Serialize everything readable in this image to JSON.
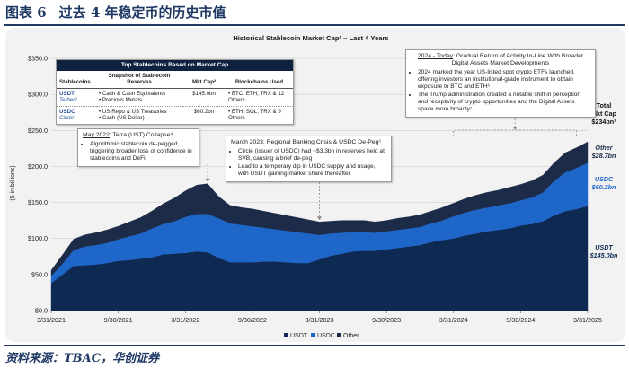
{
  "figure": {
    "number": "图表 6",
    "title": "过去 4 年稳定币的历史市值",
    "source": "资料来源：TBAC，华创证券"
  },
  "chart_data": {
    "type": "area",
    "stacked": true,
    "title": "Historical Stablecoin Market Cap¹ – Last 4 Years",
    "ylabel": "($ in billions)",
    "ylim": [
      0,
      350
    ],
    "yticks": [
      0,
      50,
      100,
      150,
      200,
      250,
      300,
      350
    ],
    "ytick_labels": [
      "$0.0",
      "$50.0",
      "$100.0",
      "$150.0",
      "$200.0",
      "$250.0",
      "$300.0",
      "$350.0"
    ],
    "xtick_labels": [
      "3/31/2021",
      "9/30/2021",
      "3/31/2022",
      "9/30/2022",
      "3/31/2023",
      "9/30/2023",
      "3/31/2024",
      "9/30/2024",
      "3/31/2025"
    ],
    "x_months": [
      0,
      1,
      2,
      3,
      4,
      5,
      6,
      7,
      8,
      9,
      10,
      11,
      12,
      13,
      14,
      15,
      16,
      17,
      18,
      19,
      20,
      21,
      22,
      23,
      24,
      25,
      26,
      27,
      28,
      29,
      30,
      31,
      32,
      33,
      34,
      35,
      36,
      37,
      38,
      39,
      40,
      41,
      42,
      43,
      44,
      45,
      46,
      47,
      48
    ],
    "legend": [
      "USDT",
      "USDC",
      "Other"
    ],
    "series": [
      {
        "name": "USDT",
        "color": "#0e2a52",
        "values": [
          38,
          50,
          62,
          63,
          64,
          66,
          69,
          70,
          72,
          74,
          78,
          79,
          80,
          82,
          81,
          73,
          67,
          67,
          67,
          68,
          68,
          67,
          66,
          66,
          71,
          76,
          79,
          82,
          83,
          83,
          85,
          87,
          89,
          91,
          95,
          98,
          100,
          104,
          107,
          110,
          112,
          114,
          118,
          120,
          124,
          132,
          138,
          141,
          145
        ]
      },
      {
        "name": "USDC",
        "color": "#1f66c9",
        "values": [
          10,
          15,
          22,
          26,
          27,
          28,
          30,
          33,
          35,
          40,
          42,
          45,
          50,
          52,
          53,
          55,
          54,
          52,
          50,
          47,
          45,
          44,
          43,
          41,
          34,
          31,
          29,
          27,
          26,
          25,
          25,
          25,
          25,
          25,
          26,
          27,
          31,
          32,
          33,
          33,
          34,
          35,
          35,
          37,
          40,
          48,
          54,
          57,
          60
        ]
      },
      {
        "name": "Other",
        "color": "#1b2b48",
        "values": [
          8,
          12,
          15,
          16,
          17,
          18,
          18,
          20,
          22,
          24,
          28,
          32,
          36,
          40,
          42,
          30,
          25,
          24,
          24,
          23,
          22,
          21,
          20,
          19,
          18,
          17,
          17,
          16,
          16,
          15,
          15,
          16,
          16,
          17,
          17,
          18,
          18,
          19,
          20,
          21,
          21,
          22,
          22,
          23,
          24,
          25,
          27,
          28,
          29
        ]
      }
    ],
    "end_labels": [
      {
        "name": "Total Mkt Cap",
        "value": "$234bn¹"
      },
      {
        "name": "Other",
        "value": "$28.7bn"
      },
      {
        "name": "USDC",
        "value": "$60.2bn"
      },
      {
        "name": "USDT",
        "value": "$145.0bn"
      }
    ]
  },
  "stablecoin_table": {
    "title": "Top Stablecoins Based on Market Cap",
    "headers": [
      "Stablecoins",
      "Snapshot of Stablecoin Reserves",
      "Mkt Cap²",
      "Blockchains Used"
    ],
    "rows": [
      {
        "coin": "USDT",
        "issuer": "Tether³",
        "reserves": [
          "Cash & Cash Equivalents",
          "Precious Metals"
        ],
        "cap": "$145.0bn",
        "chains": [
          "BTC, ETH, TRX & 12 Others"
        ]
      },
      {
        "coin": "USDC",
        "issuer": "Circle³",
        "reserves": [
          "US Repo & US Treasuries",
          "Cash (US Dollar)"
        ],
        "cap": "$60.2bn",
        "chains": [
          "ETH, SOL, TRX & 9 Others"
        ]
      }
    ]
  },
  "annotations": [
    {
      "date": "May 2022",
      "title": "Terra (UST) Collapse⁴",
      "bullets": [
        "Algorithmic stablecoin de-pegged, triggering broader loss of confidence in stablecoins and DeFi"
      ]
    },
    {
      "date": "March 2023",
      "title": "Regional Banking Crisis & USDC De-Peg⁵",
      "bullets": [
        "Circle (issuer of USDC) had ~$3.3bn in reserves held at SVB, causing a brief de-peg",
        "Lead to a temporary dip in USDC supply and usage, with USDT gaining market share thereafter"
      ]
    },
    {
      "date": "2024 - Today",
      "title": "Gradual Return of Activity In-Line With Broader Digital Assets Market Developments",
      "bullets": [
        "2024 marked the year US-listed spot crypto ETFs launched, offering investors an institutional-grade instrument to obtain exposure to BTC and ETH⁶",
        "The Trump administration created a notable shift in perception and receptivity of crypto opportunities and the Digital Assets space more broadly⁷"
      ]
    }
  ]
}
